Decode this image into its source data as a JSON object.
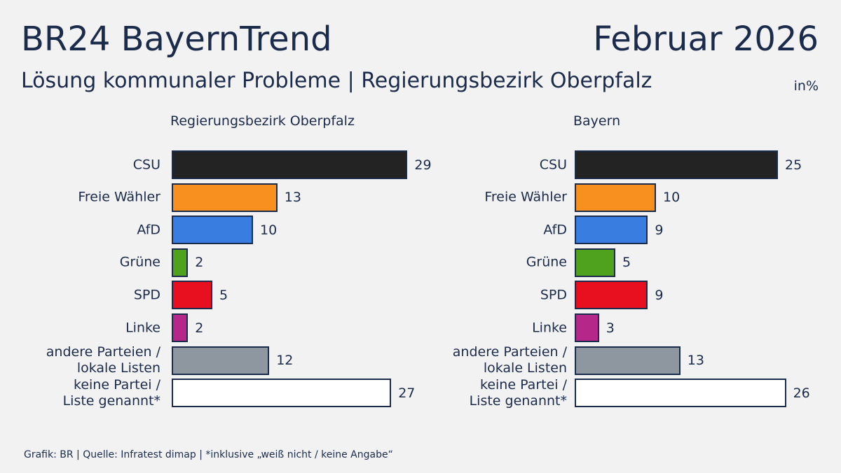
{
  "title": "BR24 BayernTrend",
  "date": "Februar 2026",
  "subtitle": "Lösung kommunaler Probleme | Regierungsbezirk Oberpfalz",
  "unit": "in%",
  "source": "Grafik: BR | Quelle: Infratest dimap | *inklusive „weiß nicht / keine Angabe“",
  "chart_data": [
    {
      "type": "bar",
      "title": "Regierungsbezirk Oberpfalz",
      "categories": [
        "CSU",
        "Freie Wähler",
        "AfD",
        "Grüne",
        "SPD",
        "Linke",
        "andere Parteien /\nlokale Listen",
        "keine Partei /\nListe genannt*"
      ],
      "values": [
        29,
        13,
        10,
        2,
        5,
        2,
        12,
        27
      ],
      "colors": [
        "#232323",
        "#f7901e",
        "#3a7de0",
        "#4ea21e",
        "#e8101f",
        "#b5288a",
        "#8e979f",
        "#ffffff"
      ]
    },
    {
      "type": "bar",
      "title": "Bayern",
      "categories": [
        "CSU",
        "Freie Wähler",
        "AfD",
        "Grüne",
        "SPD",
        "Linke",
        "andere Parteien /\nlokale Listen",
        "keine Partei /\nListe genannt*"
      ],
      "values": [
        25,
        10,
        9,
        5,
        9,
        3,
        13,
        26
      ],
      "colors": [
        "#232323",
        "#f7901e",
        "#3a7de0",
        "#4ea21e",
        "#e8101f",
        "#b5288a",
        "#8e979f",
        "#ffffff"
      ]
    }
  ]
}
